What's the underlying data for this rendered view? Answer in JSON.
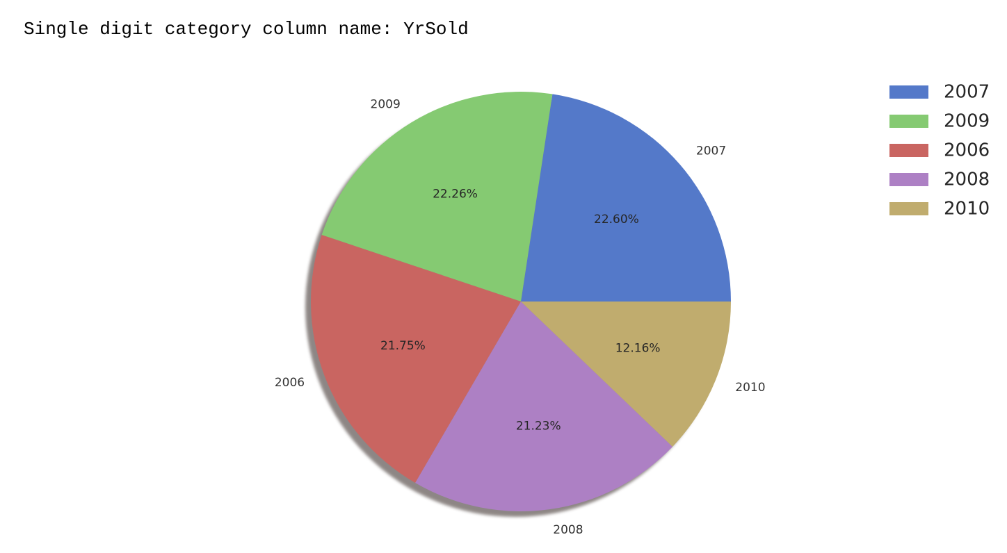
{
  "output": {
    "heading": "Single digit category column name: YrSold"
  },
  "chart_data": {
    "type": "pie",
    "start_angle_deg": 0,
    "direction": "counterclockwise",
    "shadow": true,
    "slices": [
      {
        "label": "2007",
        "value": 22.6,
        "pct_label": "22.60%",
        "color": "#5479c9"
      },
      {
        "label": "2009",
        "value": 22.26,
        "pct_label": "22.26%",
        "color": "#85ca72"
      },
      {
        "label": "2006",
        "value": 21.75,
        "pct_label": "21.75%",
        "color": "#c96561"
      },
      {
        "label": "2008",
        "value": 21.23,
        "pct_label": "21.23%",
        "color": "#ad80c4"
      },
      {
        "label": "2010",
        "value": 12.16,
        "pct_label": "12.16%",
        "color": "#c0ac6e"
      }
    ],
    "legend": {
      "position": "upper-right",
      "entries": [
        "2007",
        "2009",
        "2006",
        "2008",
        "2010"
      ]
    }
  }
}
